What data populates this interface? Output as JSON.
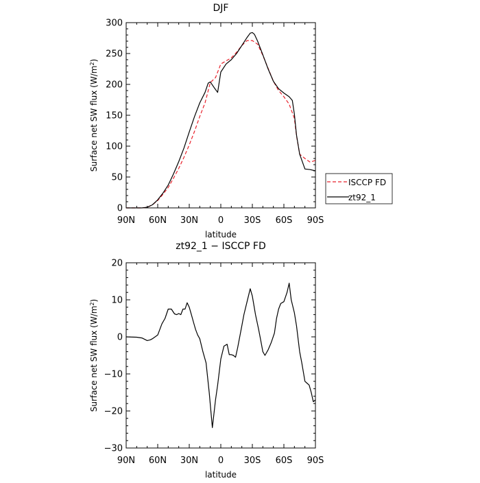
{
  "chart_data": [
    {
      "type": "line",
      "title": "DJF",
      "xlabel": "latitude",
      "ylabel_prefix": "Surface net SW flux (W/m",
      "ylabel_sup": "2",
      "ylabel_suffix": ")",
      "xlim": [
        -90,
        90
      ],
      "ylim": [
        0,
        300
      ],
      "xticks": [
        -90,
        -60,
        -30,
        0,
        30,
        60,
        90
      ],
      "xtick_labels": [
        "90N",
        "60N",
        "30N",
        "0",
        "30S",
        "60S",
        "90S"
      ],
      "yticks": [
        0,
        50,
        100,
        150,
        200,
        250,
        300
      ],
      "ytick_labels": [
        "0",
        "50",
        "100",
        "150",
        "200",
        "250",
        "300"
      ],
      "grid": false,
      "legend": {
        "placement": "right",
        "entries": [
          "ISCCP FD",
          "zt92_1"
        ]
      },
      "series": [
        {
          "name": "ISCCP FD",
          "color": "#e8202a",
          "dash": "dashed",
          "x": [
            -90,
            -80,
            -75,
            -70,
            -65,
            -60,
            -55,
            -50,
            -45,
            -40,
            -35,
            -30,
            -25,
            -20,
            -15,
            -10,
            -5,
            0,
            5,
            10,
            15,
            20,
            25,
            30,
            35,
            40,
            45,
            50,
            55,
            60,
            65,
            70,
            72,
            75,
            80,
            85,
            90
          ],
          "y": [
            0,
            0,
            0,
            1,
            5,
            12,
            22,
            33,
            48,
            64,
            82,
            102,
            124,
            148,
            170,
            203,
            211,
            233,
            238,
            243,
            252,
            263,
            271,
            271,
            265,
            247,
            226,
            205,
            190,
            180,
            168,
            145,
            117,
            87,
            80,
            74,
            77
          ]
        },
        {
          "name": "zt92_1",
          "color": "#000000",
          "dash": "solid",
          "x": [
            -90,
            -80,
            -75,
            -70,
            -65,
            -60,
            -55,
            -50,
            -45,
            -40,
            -35,
            -30,
            -25,
            -20,
            -15,
            -12,
            -10,
            -6,
            -3,
            0,
            5,
            10,
            15,
            20,
            25,
            28,
            30,
            32,
            35,
            40,
            45,
            50,
            55,
            60,
            65,
            68,
            70,
            72,
            75,
            80,
            85,
            90
          ],
          "y": [
            0,
            0,
            0,
            1,
            5,
            13,
            24,
            37,
            55,
            75,
            97,
            123,
            148,
            170,
            187,
            202,
            204,
            194,
            187,
            220,
            233,
            240,
            250,
            263,
            276,
            283,
            284,
            281,
            270,
            248,
            225,
            205,
            193,
            186,
            180,
            174,
            152,
            118,
            87,
            63,
            62,
            60
          ]
        }
      ]
    },
    {
      "type": "line",
      "title": "zt92_1 − ISCCP FD",
      "xlabel": "latitude",
      "ylabel_prefix": "Surface net SW flux (W/m",
      "ylabel_sup": "2",
      "ylabel_suffix": ")",
      "xlim": [
        -90,
        90
      ],
      "ylim": [
        -30,
        20
      ],
      "xticks": [
        -90,
        -60,
        -30,
        0,
        30,
        60,
        90
      ],
      "xtick_labels": [
        "90N",
        "60N",
        "30N",
        "0",
        "30S",
        "60S",
        "90S"
      ],
      "yticks": [
        -30,
        -20,
        -10,
        0,
        10,
        20
      ],
      "ytick_labels": [
        "−30",
        "−20",
        "−10",
        "0",
        "10",
        "20"
      ],
      "grid": false,
      "series": [
        {
          "color": "#000000",
          "dash": "solid",
          "x": [
            -90,
            -80,
            -75,
            -70,
            -67,
            -65,
            -60,
            -56,
            -53,
            -50,
            -47,
            -44,
            -42,
            -40,
            -38,
            -36,
            -34,
            -32,
            -30,
            -28,
            -26,
            -24,
            -22,
            -20,
            -17,
            -14,
            -11,
            -8,
            -5,
            -3,
            0,
            3,
            6,
            8,
            10,
            12,
            14,
            16,
            18,
            20,
            22,
            25,
            28,
            30,
            33,
            36,
            38,
            40,
            42,
            45,
            48,
            51,
            53,
            55,
            57,
            60,
            63,
            65,
            67,
            70,
            72,
            75,
            77,
            80,
            82,
            84,
            86,
            88,
            90
          ],
          "y": [
            0,
            -0.1,
            -0.3,
            -1.0,
            -0.8,
            -0.5,
            0.5,
            3.5,
            5,
            7.5,
            7.5,
            6.2,
            6,
            6.3,
            6,
            7.5,
            7.5,
            9.2,
            8,
            6,
            4,
            2,
            0.5,
            -0.5,
            -4,
            -7,
            -15,
            -24.5,
            -17,
            -13,
            -6,
            -2.5,
            -2,
            -4.8,
            -4.8,
            -5,
            -5.5,
            -3,
            0,
            3,
            6,
            9.5,
            13,
            11,
            6,
            2,
            -1,
            -4,
            -5,
            -3.5,
            -1.5,
            1,
            5,
            7.5,
            9,
            9.5,
            12,
            14.5,
            10,
            6.5,
            3,
            -4,
            -7,
            -12,
            -12.5,
            -13,
            -15,
            -17.5,
            -17
          ]
        }
      ]
    }
  ]
}
